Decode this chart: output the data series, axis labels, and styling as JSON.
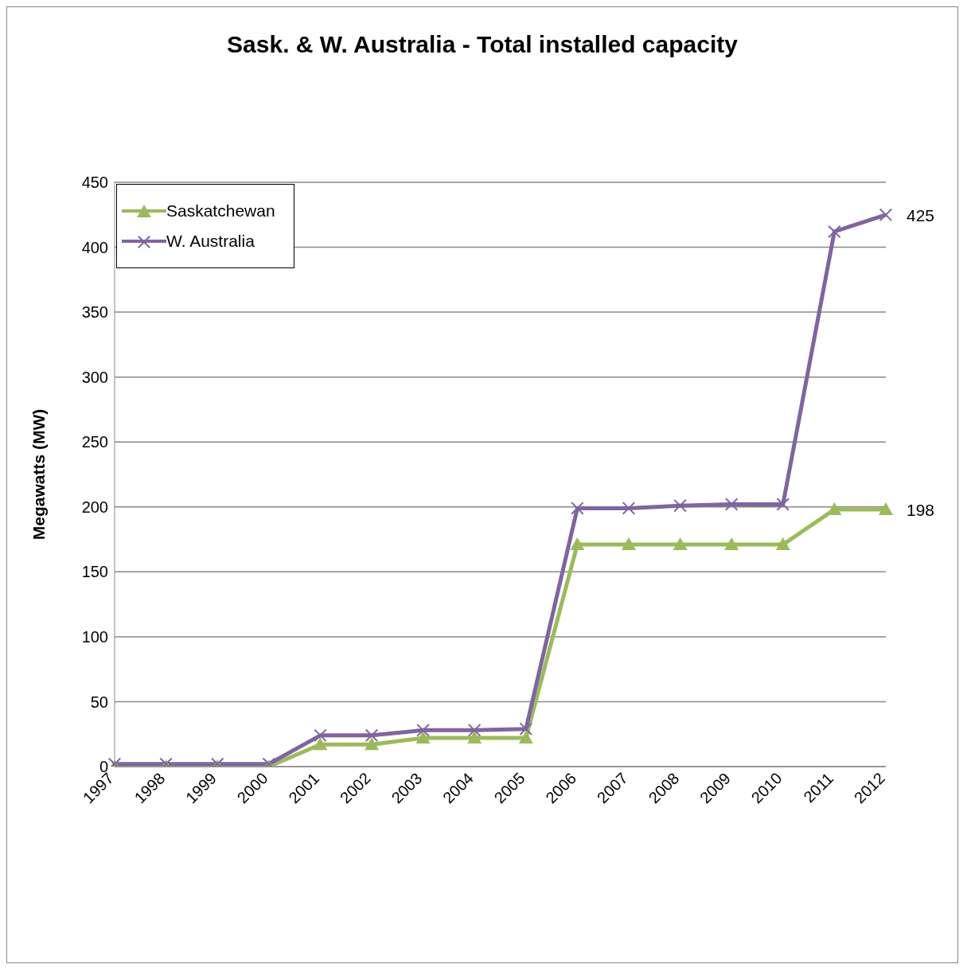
{
  "chart_data": {
    "type": "line",
    "title": "Sask. & W. Australia - Total installed capacity",
    "ylabel": "Megawatts (MW)",
    "categories": [
      "1997",
      "1998",
      "1999",
      "2000",
      "2001",
      "2002",
      "2003",
      "2004",
      "2005",
      "2006",
      "2007",
      "2008",
      "2009",
      "2010",
      "2011",
      "2012"
    ],
    "series": [
      {
        "name": "Saskatchewan",
        "color": "#9bbb59",
        "marker": "triangle",
        "values": [
          0,
          0,
          0,
          0,
          17,
          17,
          22,
          22,
          22,
          171,
          171,
          171,
          171,
          171,
          198,
          198
        ],
        "value_labels": [
          null,
          null,
          null,
          null,
          null,
          null,
          null,
          null,
          null,
          null,
          null,
          null,
          null,
          null,
          null,
          "198"
        ]
      },
      {
        "name": "W. Australia",
        "color": "#8064a2",
        "marker": "cross",
        "values": [
          2,
          2,
          2,
          2,
          24,
          24,
          28,
          28,
          29,
          199,
          199,
          201,
          202,
          202,
          412,
          425
        ],
        "value_labels": [
          null,
          null,
          null,
          null,
          null,
          null,
          null,
          null,
          null,
          null,
          null,
          null,
          null,
          null,
          null,
          "425"
        ]
      }
    ],
    "ylim": [
      0,
      450
    ],
    "yticks": [
      0,
      50,
      100,
      150,
      200,
      250,
      300,
      350,
      400,
      450
    ],
    "grid": "y",
    "legend": "top left"
  }
}
